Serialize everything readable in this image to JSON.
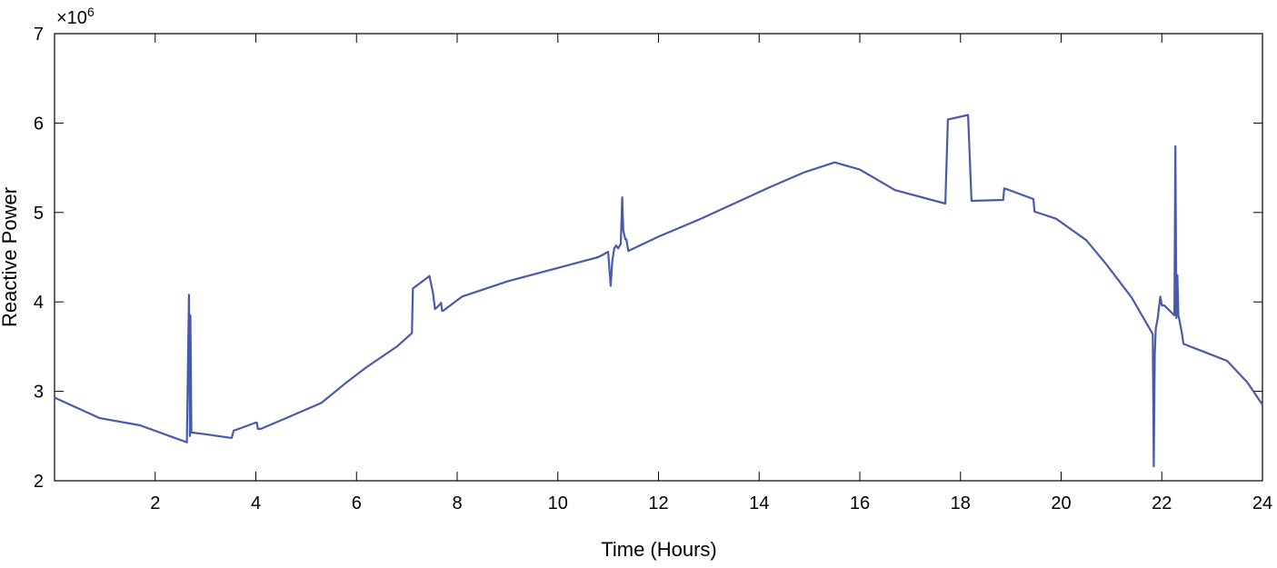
{
  "chart_data": {
    "type": "line",
    "title": "",
    "xlabel": "Time (Hours)",
    "ylabel": "Reactive Power",
    "y_exponent_label": "×10",
    "y_exponent_power": "6",
    "xlim": [
      0,
      24
    ],
    "ylim": [
      2000000,
      7000000
    ],
    "x_ticks": [
      2,
      4,
      6,
      8,
      10,
      12,
      14,
      16,
      18,
      20,
      22,
      24
    ],
    "y_ticks": [
      2,
      3,
      4,
      5,
      6,
      7
    ],
    "grid": false,
    "line_color": "#4a5aa8",
    "series": [
      {
        "x": [
          0,
          0.9,
          1.7,
          2.63,
          2.67,
          2.69,
          2.7,
          2.72,
          3.0,
          3.5,
          3.52,
          3.56,
          4.0,
          4.02,
          4.04,
          4.1,
          4.6,
          5.3,
          5.8,
          6.2,
          6.8,
          7.1,
          7.12,
          7.45,
          7.52,
          7.56,
          7.62,
          7.68,
          7.7,
          7.72,
          8.1,
          9.0,
          10.0,
          10.8,
          11.0,
          11.05,
          11.08,
          11.12,
          11.16,
          11.2,
          11.25,
          11.28,
          11.3,
          11.34,
          11.36,
          11.4,
          12.0,
          12.8,
          13.5,
          14.2,
          14.9,
          15.5,
          16.0,
          16.7,
          17.7,
          17.75,
          18.15,
          18.22,
          18.85,
          18.87,
          19.45,
          19.47,
          19.9,
          20.5,
          20.9,
          21.4,
          21.82,
          21.84,
          21.86,
          21.88,
          21.92,
          21.97,
          22.0,
          22.05,
          22.25,
          22.27,
          22.29,
          22.31,
          22.33,
          22.35,
          22.4,
          22.43,
          22.8,
          23.3,
          23.7,
          24.0
        ],
        "y": [
          2930000,
          2700000,
          2620000,
          2430000,
          4080000,
          2500000,
          3850000,
          2540000,
          2520000,
          2480000,
          2480000,
          2560000,
          2650000,
          2650000,
          2580000,
          2580000,
          2700000,
          2870000,
          3100000,
          3270000,
          3500000,
          3650000,
          4150000,
          4290000,
          4100000,
          3920000,
          3950000,
          3990000,
          3900000,
          3900000,
          4060000,
          4230000,
          4380000,
          4500000,
          4560000,
          4180000,
          4450000,
          4600000,
          4630000,
          4600000,
          4650000,
          5170000,
          4800000,
          4700000,
          4700000,
          4570000,
          4730000,
          4920000,
          5100000,
          5280000,
          5450000,
          5560000,
          5480000,
          5250000,
          5100000,
          6040000,
          6090000,
          5130000,
          5140000,
          5270000,
          5150000,
          5010000,
          4930000,
          4690000,
          4420000,
          4050000,
          3640000,
          2160000,
          3400000,
          3700000,
          3820000,
          4060000,
          3960000,
          3960000,
          3850000,
          5740000,
          3820000,
          4300000,
          3850000,
          3800000,
          3650000,
          3530000,
          3450000,
          3340000,
          3100000,
          2850000
        ]
      }
    ]
  }
}
